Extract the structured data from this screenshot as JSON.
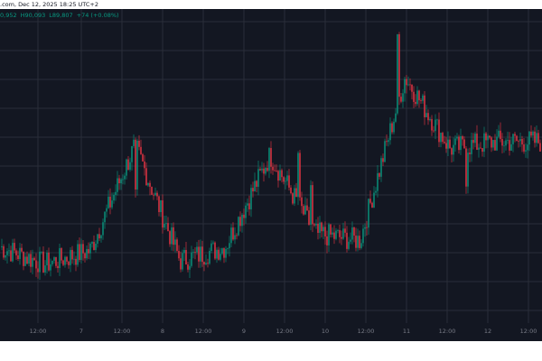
{
  "header": {
    "caption": ".com, Dec 12, 2025 18:25 UTC+2"
  },
  "ohlc": {
    "open": "0,952",
    "high": "H90,093",
    "low": "L89,807",
    "change": "+74 (+0.08%)"
  },
  "x_ticks": [
    "12:00",
    "7",
    "12:00",
    "8",
    "12:00",
    "9",
    "12:00",
    "10",
    "12:00",
    "11",
    "12:00",
    "12",
    "12:00"
  ],
  "colors": {
    "up": "#089981",
    "down": "#f23645",
    "background": "#131722",
    "grid": "#2a2e39"
  },
  "chart_data": {
    "type": "candlestick",
    "x": [
      "12:00",
      "7",
      "12:00",
      "8",
      "12:00",
      "9",
      "12:00",
      "10",
      "12:00",
      "11",
      "12:00",
      "12",
      "12:00"
    ],
    "y": [
      89.0,
      88.5,
      88.9,
      92.0,
      88.6,
      89.0,
      91.7,
      89.4,
      89.2,
      94.0,
      91.9,
      92.1,
      92.1
    ],
    "grid": true
  }
}
